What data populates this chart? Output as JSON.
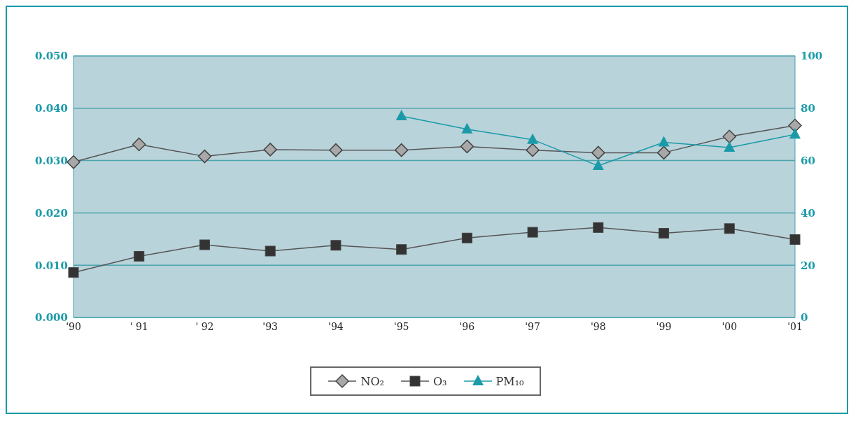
{
  "chart_data": {
    "type": "line",
    "categories": [
      "'90",
      "' 91",
      "' 92",
      "'93",
      "'94",
      "'95",
      "'96",
      "'97",
      "'98",
      "'99",
      "'00",
      "'01"
    ],
    "series": [
      {
        "name": "NO₂",
        "color": "#a8a8a8",
        "marker": "diamond",
        "values": [
          0.0297,
          0.0331,
          0.0308,
          0.0321,
          0.032,
          0.032,
          0.0327,
          0.032,
          0.0315,
          0.0315,
          0.0346,
          0.0367
        ]
      },
      {
        "name": "O₃",
        "color": "#333333",
        "marker": "square",
        "values": [
          0.0086,
          0.0117,
          0.0139,
          0.0127,
          0.0138,
          0.013,
          0.0152,
          0.0163,
          0.0172,
          0.0161,
          0.017,
          0.0149
        ]
      },
      {
        "name": "PM₁₀",
        "color": "#1a9aa8",
        "marker": "triangle",
        "axis": "y2",
        "values": [
          null,
          null,
          null,
          null,
          null,
          77,
          72,
          68,
          58,
          67,
          65,
          70
        ]
      }
    ],
    "ylim": [
      0,
      0.05
    ],
    "yticks": [
      {
        "value": 0,
        "label": "0.000"
      },
      {
        "value": 0.01,
        "label": "0.010"
      },
      {
        "value": 0.02,
        "label": "0.020"
      },
      {
        "value": 0.03,
        "label": "0.030"
      },
      {
        "value": 0.04,
        "label": "0.040"
      },
      {
        "value": 0.05,
        "label": "0.050"
      }
    ],
    "y2lim": [
      0,
      100
    ],
    "y2ticks": [
      0,
      20,
      40,
      60,
      80,
      100
    ],
    "grid": "y",
    "legend": "bottom"
  }
}
